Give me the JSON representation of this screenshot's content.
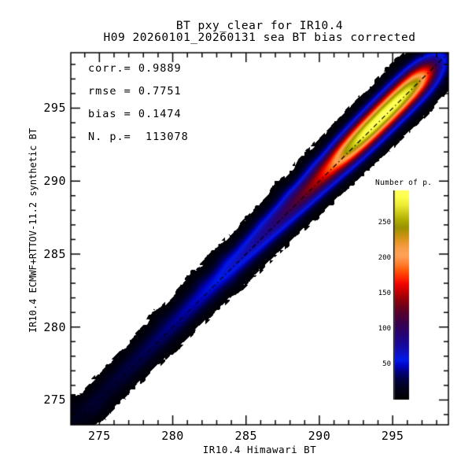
{
  "chart_data": {
    "type": "heatmap",
    "title": "BT pxy_clear for IR10.4",
    "subtitle": "H09 20260101_20260131 sea BT bias corrected",
    "xlabel": "IR10.4 Himawari BT",
    "ylabel": "IR10.4 ECMWF+RTTOV-11.2 synthetic BT",
    "x_range": [
      273.05,
      298.8
    ],
    "y_range": [
      273.3,
      298.8
    ],
    "x_major_ticks": [
      275,
      280,
      285,
      290,
      295
    ],
    "y_major_ticks": [
      275,
      280,
      285,
      290,
      295
    ],
    "minor_tick_step": 1,
    "grid": false,
    "stats": {
      "corr": "0.9889",
      "rmse": "0.7751",
      "bias": "0.1474",
      "n_points": "113078",
      "lines": [
        "corr.= 0.9889",
        "rmse = 0.7751",
        "bias = 0.1474",
        "N. p.=  113078"
      ]
    },
    "identity_line": {
      "style": "dash-dot",
      "color": "#000000",
      "slope": 1,
      "intercept": 0
    },
    "colorbar": {
      "title": "Number of p.",
      "range": [
        0,
        295
      ],
      "ticks": [
        50,
        100,
        150,
        200,
        250
      ],
      "stops": [
        [
          0,
          "#000000"
        ],
        [
          16,
          "#00001a"
        ],
        [
          30,
          "#000048"
        ],
        [
          40,
          "#000085"
        ],
        [
          48,
          "#0004c2"
        ],
        [
          56,
          "#001ae8"
        ],
        [
          63,
          "#0b14d0"
        ],
        [
          72,
          "#140caa"
        ],
        [
          84,
          "#1d0688"
        ],
        [
          97,
          "#2b0366"
        ],
        [
          109,
          "#3c0148"
        ],
        [
          121,
          "#540030"
        ],
        [
          132,
          "#700018"
        ],
        [
          143,
          "#9a0008"
        ],
        [
          153,
          "#c80000"
        ],
        [
          163,
          "#f20400"
        ],
        [
          173,
          "#ff2e00"
        ],
        [
          183,
          "#ff5c0e"
        ],
        [
          193,
          "#ff8536"
        ],
        [
          203,
          "#ffa258"
        ],
        [
          212,
          "#fb9e4c"
        ],
        [
          222,
          "#e89729"
        ],
        [
          232,
          "#c59310"
        ],
        [
          242,
          "#9b9200"
        ],
        [
          252,
          "#abaa00"
        ],
        [
          262,
          "#c9c614"
        ],
        [
          274,
          "#ecec33"
        ],
        [
          286,
          "#ffff4e"
        ],
        [
          295,
          "#ffff60"
        ]
      ]
    },
    "density": {
      "bias": 0.15,
      "sigma_base": 0.55,
      "sigma_slope": 0.0055,
      "amplitude": [
        [
          273,
          15
        ],
        [
          275,
          21
        ],
        [
          277,
          28
        ],
        [
          279,
          36
        ],
        [
          281,
          45
        ],
        [
          283,
          55
        ],
        [
          285,
          70
        ],
        [
          286.5,
          85
        ],
        [
          288,
          108
        ],
        [
          289,
          128
        ],
        [
          290,
          152
        ],
        [
          291,
          192
        ],
        [
          292,
          248
        ],
        [
          292.8,
          278
        ],
        [
          293.5,
          292
        ],
        [
          294.5,
          297
        ],
        [
          295.5,
          290
        ],
        [
          296.2,
          272
        ],
        [
          296.8,
          238
        ],
        [
          297.4,
          175
        ],
        [
          297.9,
          112
        ],
        [
          298.4,
          62
        ],
        [
          298.8,
          38
        ]
      ],
      "threshold": {
        "base": 1.3,
        "noise": 2.9,
        "bin": 0.34
      },
      "blobs": [
        [
          273.15,
          274.8,
          0.42,
          6
        ],
        [
          274.9,
          274.45,
          0.5,
          5
        ],
        [
          279.0,
          280.6,
          0.33,
          5
        ],
        [
          281.7,
          283.2,
          0.38,
          5
        ],
        [
          283.3,
          284.8,
          0.42,
          6
        ],
        [
          284.2,
          283.0,
          0.35,
          4
        ],
        [
          285.8,
          287.3,
          0.33,
          4
        ],
        [
          287.5,
          289.3,
          0.45,
          5
        ],
        [
          289.2,
          291.2,
          0.4,
          5
        ]
      ]
    }
  }
}
